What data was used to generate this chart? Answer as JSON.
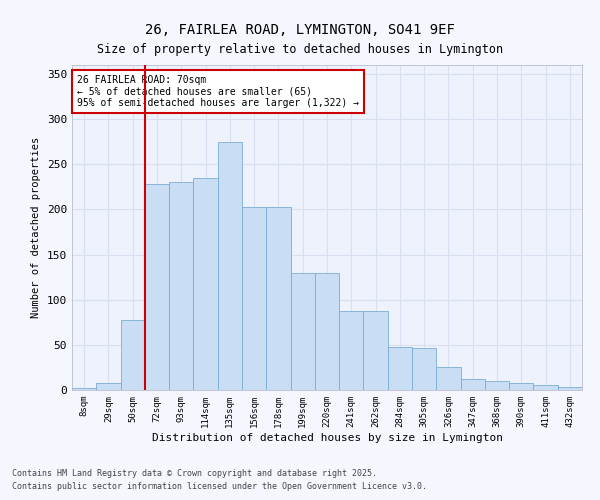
{
  "title1": "26, FAIRLEA ROAD, LYMINGTON, SO41 9EF",
  "title2": "Size of property relative to detached houses in Lymington",
  "xlabel": "Distribution of detached houses by size in Lymington",
  "ylabel": "Number of detached properties",
  "bar_color": "#c9ddf5",
  "bar_edge_color": "#7aadd4",
  "categories": [
    "8sqm",
    "29sqm",
    "50sqm",
    "72sqm",
    "93sqm",
    "114sqm",
    "135sqm",
    "156sqm",
    "178sqm",
    "199sqm",
    "220sqm",
    "241sqm",
    "262sqm",
    "284sqm",
    "305sqm",
    "326sqm",
    "347sqm",
    "368sqm",
    "390sqm",
    "411sqm",
    "432sqm"
  ],
  "bar_heights": [
    2,
    8,
    77,
    228,
    230,
    235,
    275,
    203,
    203,
    130,
    130,
    88,
    88,
    48,
    46,
    25,
    12,
    10,
    8,
    5,
    3
  ],
  "ylim": [
    0,
    360
  ],
  "yticks": [
    0,
    50,
    100,
    150,
    200,
    250,
    300,
    350
  ],
  "vline_color": "#cc0000",
  "annotation_text": "26 FAIRLEA ROAD: 70sqm\n← 5% of detached houses are smaller (65)\n95% of semi-detached houses are larger (1,322) →",
  "footer1": "Contains HM Land Registry data © Crown copyright and database right 2025.",
  "footer2": "Contains public sector information licensed under the Open Government Licence v3.0.",
  "bg_color": "#eef2fc",
  "grid_color": "#d8dff0",
  "fig_bg_color": "#f5f7ff"
}
